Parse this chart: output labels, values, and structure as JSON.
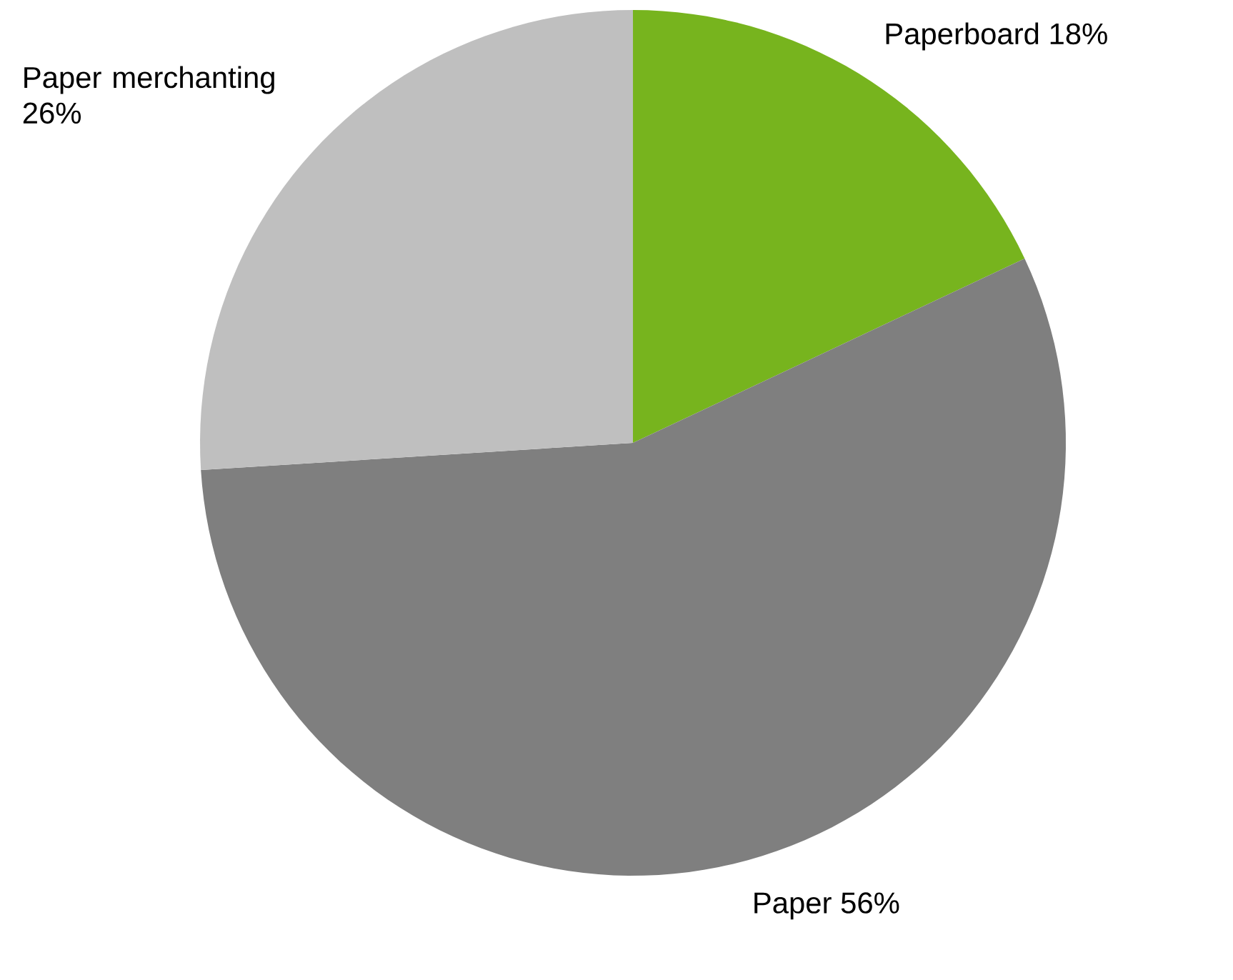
{
  "chart_data": {
    "type": "pie",
    "categories": [
      "Paperboard",
      "Paper",
      "Paper merchanting"
    ],
    "values": [
      18,
      56,
      26
    ],
    "colors": [
      "#77b41e",
      "#7f7f7f",
      "#bfbfbf"
    ],
    "value_labels": [
      "18%",
      "56%",
      "26%"
    ]
  }
}
